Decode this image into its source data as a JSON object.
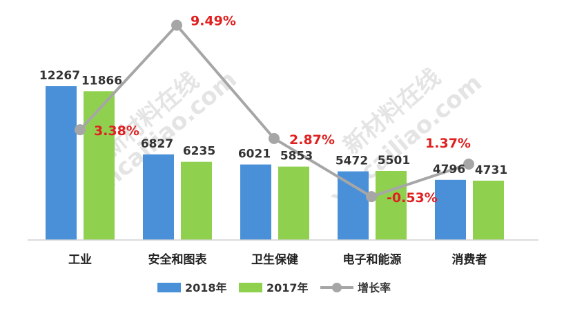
{
  "chart_data": {
    "type": "bar",
    "categories": [
      "工业",
      "安全和图表",
      "卫生保健",
      "电子和能源",
      "消费者"
    ],
    "series": [
      {
        "name": "2018年",
        "values": [
          12267,
          6827,
          6021,
          5472,
          4796
        ],
        "color": "#4a90d9"
      },
      {
        "name": "2017年",
        "values": [
          11866,
          6235,
          5853,
          5501,
          4731
        ],
        "color": "#8fd14f"
      }
    ],
    "line_series": {
      "name": "增长率",
      "values": [
        3.38,
        9.49,
        2.87,
        -0.53,
        1.37
      ],
      "labels": [
        "3.38%",
        "9.49%",
        "2.87%",
        "-0.53%",
        "1.37%"
      ],
      "color": "#a6a6a6",
      "label_color": "#e02020"
    },
    "legend_position": "bottom",
    "grid": false
  },
  "watermark": {
    "left_cn": "新材料在线",
    "left_en": "xincailiao.com",
    "right_cn": "新材料在线",
    "right_en": "xincailiao.com"
  }
}
